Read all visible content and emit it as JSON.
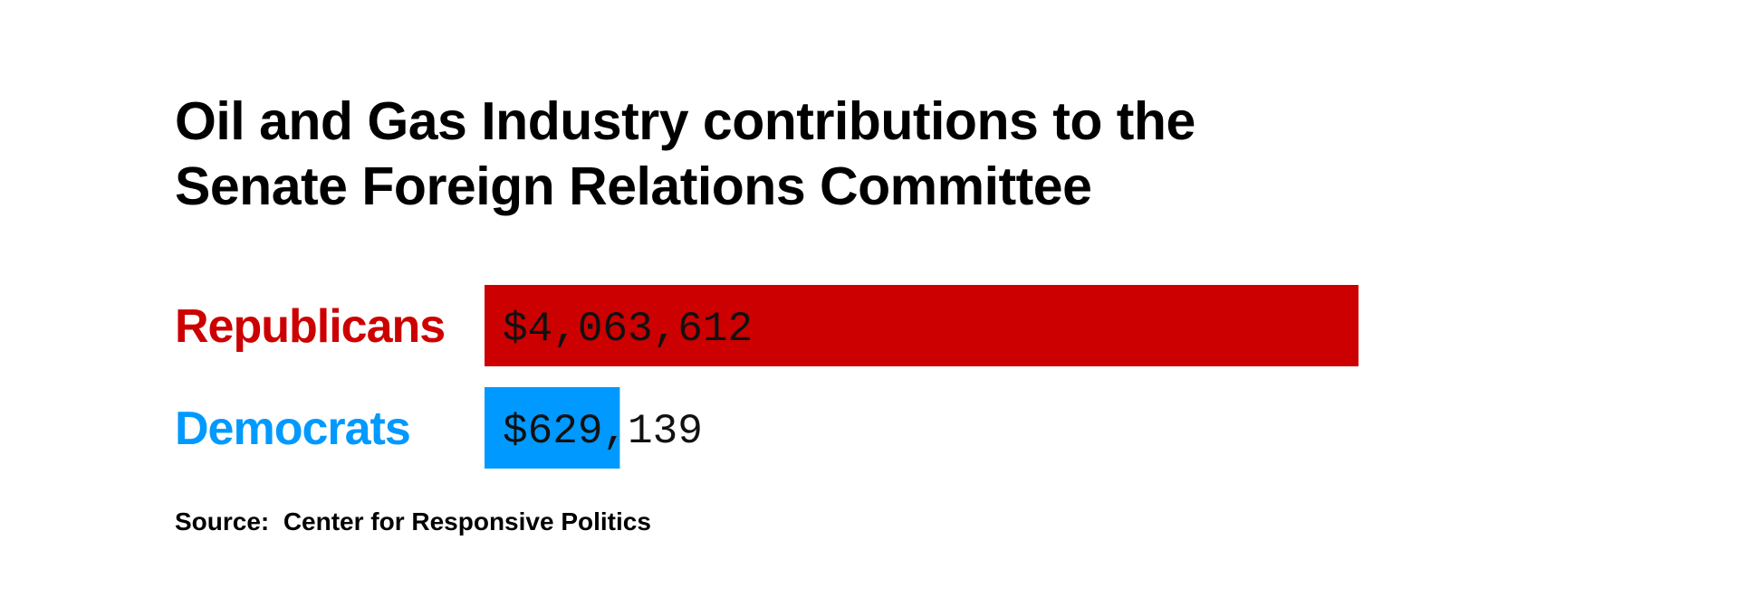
{
  "title_lines": [
    "Oil and Gas Industry contributions to the",
    "Senate Foreign Relations Committee"
  ],
  "source": {
    "label": "Source:",
    "text": "Center for Responsive Politics"
  },
  "chart_data": {
    "type": "bar",
    "orientation": "horizontal",
    "title": "Oil and Gas Industry contributions to the Senate Foreign Relations Committee",
    "xlabel": "",
    "ylabel": "",
    "grid": false,
    "legend": "none",
    "xlim": [
      0,
      4063612
    ],
    "categories": [
      "Republicans",
      "Democrats"
    ],
    "values": [
      4063612,
      629139
    ],
    "value_labels": [
      "$4,063,612",
      "$629,139"
    ],
    "colors": [
      "#cc0000",
      "#0099ff"
    ]
  }
}
